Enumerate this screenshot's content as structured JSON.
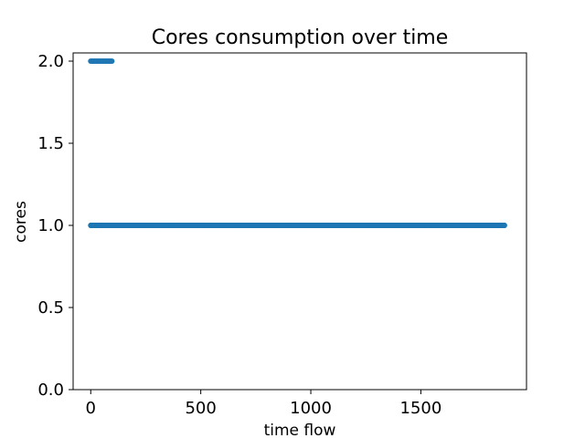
{
  "chart_data": {
    "type": "scatter",
    "title": "Cores consumption over time",
    "xlabel": "time flow",
    "ylabel": "cores",
    "xlim": [
      -80,
      1980
    ],
    "ylim": [
      0,
      2.05
    ],
    "x_ticks": [
      0,
      500,
      1000,
      1500
    ],
    "x_tick_labels": [
      "0",
      "500",
      "1000",
      "1500"
    ],
    "y_ticks": [
      0.0,
      0.5,
      1.0,
      1.5,
      2.0
    ],
    "y_tick_labels": [
      "0.0",
      "0.5",
      "1.0",
      "1.5",
      "2.0"
    ],
    "grid": false,
    "series": [
      {
        "color": "#1f77b4",
        "marker": "circle",
        "segments": [
          {
            "y": 2.0,
            "x_start": 0,
            "x_end": 100,
            "step": 6
          },
          {
            "y": 1.0,
            "x_start": 0,
            "x_end": 1880,
            "step": 1
          }
        ]
      }
    ]
  }
}
